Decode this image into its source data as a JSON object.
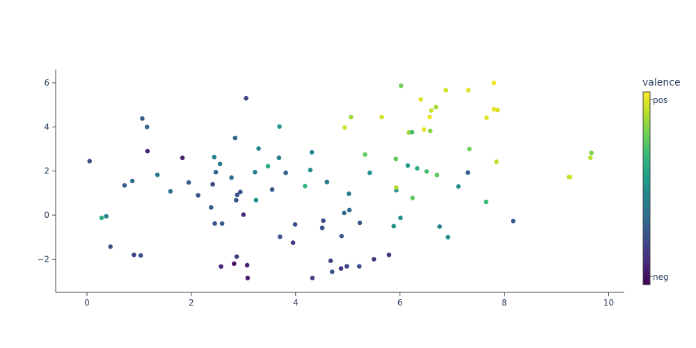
{
  "chart_data": {
    "type": "scatter",
    "xlim": [
      -0.6,
      10.3
    ],
    "ylim": [
      -3.5,
      6.6
    ],
    "x_ticks": [
      0,
      2,
      4,
      6,
      8,
      10
    ],
    "y_ticks": [
      -2,
      0,
      2,
      4,
      6
    ],
    "grid": false,
    "colorbar": {
      "title": "valence",
      "colorscale": "Viridis",
      "tick_labels": [
        "pos",
        "neg"
      ],
      "range": [
        0,
        1
      ]
    },
    "points": [
      {
        "x": 0.05,
        "y": 2.45,
        "c": 0.25
      },
      {
        "x": 0.28,
        "y": -0.12,
        "c": 0.62
      },
      {
        "x": 0.37,
        "y": -0.05,
        "c": 0.45
      },
      {
        "x": 0.45,
        "y": -1.43,
        "c": 0.25
      },
      {
        "x": 0.72,
        "y": 1.35,
        "c": 0.3
      },
      {
        "x": 0.87,
        "y": 1.55,
        "c": 0.35
      },
      {
        "x": 0.9,
        "y": -1.8,
        "c": 0.2
      },
      {
        "x": 1.03,
        "y": -1.83,
        "c": 0.25
      },
      {
        "x": 1.06,
        "y": 4.38,
        "c": 0.28
      },
      {
        "x": 1.15,
        "y": 4.0,
        "c": 0.32
      },
      {
        "x": 1.16,
        "y": 2.9,
        "c": 0.1
      },
      {
        "x": 1.35,
        "y": 1.83,
        "c": 0.4
      },
      {
        "x": 1.6,
        "y": 1.08,
        "c": 0.35
      },
      {
        "x": 1.83,
        "y": 2.6,
        "c": 0.1
      },
      {
        "x": 1.95,
        "y": 1.48,
        "c": 0.3
      },
      {
        "x": 2.13,
        "y": 0.9,
        "c": 0.25
      },
      {
        "x": 2.38,
        "y": 0.35,
        "c": 0.28
      },
      {
        "x": 2.41,
        "y": 1.4,
        "c": 0.22
      },
      {
        "x": 2.44,
        "y": 2.63,
        "c": 0.45
      },
      {
        "x": 2.45,
        "y": -0.38,
        "c": 0.25
      },
      {
        "x": 2.47,
        "y": 1.95,
        "c": 0.32
      },
      {
        "x": 2.55,
        "y": 2.32,
        "c": 0.42
      },
      {
        "x": 2.57,
        "y": -2.33,
        "c": 0.1
      },
      {
        "x": 2.59,
        "y": -0.38,
        "c": 0.28
      },
      {
        "x": 2.77,
        "y": 1.7,
        "c": 0.36
      },
      {
        "x": 2.82,
        "y": -2.2,
        "c": 0.05
      },
      {
        "x": 2.84,
        "y": 3.5,
        "c": 0.33
      },
      {
        "x": 2.86,
        "y": 0.68,
        "c": 0.25
      },
      {
        "x": 2.87,
        "y": -1.88,
        "c": 0.2
      },
      {
        "x": 2.88,
        "y": 0.92,
        "c": 0.25
      },
      {
        "x": 2.94,
        "y": 1.05,
        "c": 0.25
      },
      {
        "x": 3.0,
        "y": 0.02,
        "c": 0.12
      },
      {
        "x": 3.05,
        "y": 5.3,
        "c": 0.2
      },
      {
        "x": 3.07,
        "y": -2.27,
        "c": 0.08
      },
      {
        "x": 3.08,
        "y": -2.85,
        "c": 0.08
      },
      {
        "x": 3.22,
        "y": 1.95,
        "c": 0.45
      },
      {
        "x": 3.24,
        "y": 0.68,
        "c": 0.5
      },
      {
        "x": 3.29,
        "y": 3.02,
        "c": 0.45
      },
      {
        "x": 3.47,
        "y": 2.22,
        "c": 0.62
      },
      {
        "x": 3.55,
        "y": 1.16,
        "c": 0.28
      },
      {
        "x": 3.68,
        "y": 2.6,
        "c": 0.42
      },
      {
        "x": 3.69,
        "y": 4.02,
        "c": 0.52
      },
      {
        "x": 3.7,
        "y": -0.98,
        "c": 0.25
      },
      {
        "x": 3.81,
        "y": 1.92,
        "c": 0.3
      },
      {
        "x": 3.95,
        "y": -1.25,
        "c": 0.15
      },
      {
        "x": 3.99,
        "y": -0.42,
        "c": 0.25
      },
      {
        "x": 4.18,
        "y": 1.32,
        "c": 0.65
      },
      {
        "x": 4.28,
        "y": 2.05,
        "c": 0.5
      },
      {
        "x": 4.31,
        "y": 2.85,
        "c": 0.45
      },
      {
        "x": 4.32,
        "y": -2.85,
        "c": 0.2
      },
      {
        "x": 4.51,
        "y": -0.58,
        "c": 0.25
      },
      {
        "x": 4.53,
        "y": -0.25,
        "c": 0.22
      },
      {
        "x": 4.6,
        "y": 1.5,
        "c": 0.42
      },
      {
        "x": 4.67,
        "y": -2.07,
        "c": 0.2
      },
      {
        "x": 4.7,
        "y": -2.57,
        "c": 0.25
      },
      {
        "x": 4.87,
        "y": -2.42,
        "c": 0.15
      },
      {
        "x": 4.88,
        "y": -0.95,
        "c": 0.28
      },
      {
        "x": 4.93,
        "y": 0.1,
        "c": 0.35
      },
      {
        "x": 4.94,
        "y": 3.97,
        "c": 0.92
      },
      {
        "x": 4.98,
        "y": -2.32,
        "c": 0.2
      },
      {
        "x": 5.02,
        "y": 0.97,
        "c": 0.4
      },
      {
        "x": 5.03,
        "y": 0.23,
        "c": 0.35
      },
      {
        "x": 5.06,
        "y": 4.45,
        "c": 0.85
      },
      {
        "x": 5.22,
        "y": -2.32,
        "c": 0.25
      },
      {
        "x": 5.23,
        "y": -0.35,
        "c": 0.25
      },
      {
        "x": 5.33,
        "y": 2.75,
        "c": 0.75
      },
      {
        "x": 5.42,
        "y": 1.92,
        "c": 0.5
      },
      {
        "x": 5.5,
        "y": -2.0,
        "c": 0.15
      },
      {
        "x": 5.65,
        "y": 4.45,
        "c": 0.93
      },
      {
        "x": 5.79,
        "y": -1.8,
        "c": 0.15
      },
      {
        "x": 5.88,
        "y": -0.5,
        "c": 0.5
      },
      {
        "x": 5.92,
        "y": 2.55,
        "c": 0.75
      },
      {
        "x": 5.93,
        "y": 1.13,
        "c": 0.5
      },
      {
        "x": 5.93,
        "y": 1.25,
        "c": 0.88
      },
      {
        "x": 6.01,
        "y": -0.12,
        "c": 0.5
      },
      {
        "x": 6.02,
        "y": 5.87,
        "c": 0.78
      },
      {
        "x": 6.15,
        "y": 2.25,
        "c": 0.55
      },
      {
        "x": 6.17,
        "y": 3.75,
        "c": 0.85
      },
      {
        "x": 6.23,
        "y": 3.76,
        "c": 0.7
      },
      {
        "x": 6.24,
        "y": 0.78,
        "c": 0.75
      },
      {
        "x": 6.33,
        "y": 2.12,
        "c": 0.62
      },
      {
        "x": 6.4,
        "y": 5.25,
        "c": 0.95
      },
      {
        "x": 6.46,
        "y": 3.88,
        "c": 0.96
      },
      {
        "x": 6.51,
        "y": 1.98,
        "c": 0.7
      },
      {
        "x": 6.57,
        "y": 4.45,
        "c": 0.97
      },
      {
        "x": 6.58,
        "y": 3.82,
        "c": 0.82
      },
      {
        "x": 6.6,
        "y": 4.75,
        "c": 0.92
      },
      {
        "x": 6.69,
        "y": 4.9,
        "c": 0.86
      },
      {
        "x": 6.71,
        "y": 1.82,
        "c": 0.75
      },
      {
        "x": 6.76,
        "y": -0.52,
        "c": 0.45
      },
      {
        "x": 6.88,
        "y": 5.67,
        "c": 0.93
      },
      {
        "x": 6.92,
        "y": -1.0,
        "c": 0.5
      },
      {
        "x": 7.12,
        "y": 1.3,
        "c": 0.5
      },
      {
        "x": 7.3,
        "y": 1.93,
        "c": 0.3
      },
      {
        "x": 7.31,
        "y": 5.67,
        "c": 0.95
      },
      {
        "x": 7.33,
        "y": 3.0,
        "c": 0.78
      },
      {
        "x": 7.65,
        "y": 0.6,
        "c": 0.68
      },
      {
        "x": 7.66,
        "y": 4.42,
        "c": 0.96
      },
      {
        "x": 7.8,
        "y": 6.0,
        "c": 0.98
      },
      {
        "x": 7.8,
        "y": 4.8,
        "c": 0.97
      },
      {
        "x": 7.85,
        "y": 2.42,
        "c": 0.9
      },
      {
        "x": 7.87,
        "y": 4.77,
        "c": 0.94
      },
      {
        "x": 8.17,
        "y": -0.27,
        "c": 0.28
      },
      {
        "x": 9.24,
        "y": 1.73,
        "c": 0.88
      },
      {
        "x": 9.26,
        "y": 1.73,
        "c": 0.92
      },
      {
        "x": 9.65,
        "y": 2.6,
        "c": 0.9
      },
      {
        "x": 9.67,
        "y": 2.82,
        "c": 0.8
      }
    ]
  }
}
